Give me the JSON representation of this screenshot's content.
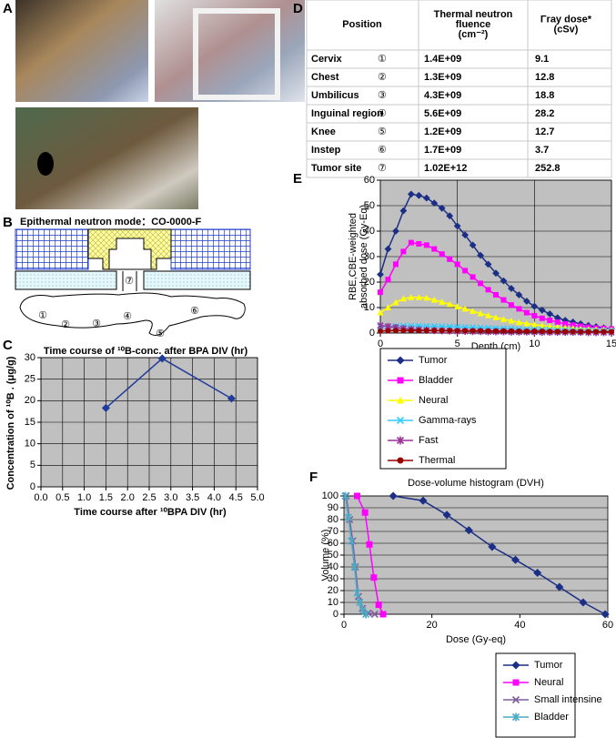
{
  "panel_labels": [
    "A",
    "B",
    "C",
    "D",
    "E",
    "F"
  ],
  "diagram": {
    "title": "Epithermal neutron mode：CO-0000-F",
    "markers": [
      "⑦",
      "①",
      "②",
      "③",
      "④",
      "⑤",
      "⑥"
    ]
  },
  "table": {
    "header": [
      [
        "Position"
      ],
      [
        "Thermal neutron",
        "fluence",
        "(cm⁻²)"
      ],
      [
        "Γray dose*",
        "(cSv)"
      ]
    ],
    "rows": [
      [
        "Cervix",
        "①",
        "1.4E+09",
        "9.1"
      ],
      [
        "Chest",
        "②",
        "1.3E+09",
        "12.8"
      ],
      [
        "Umbilicus",
        "③",
        "4.3E+09",
        "18.8"
      ],
      [
        "Inguinal region",
        "④",
        "5.6E+09",
        "28.2"
      ],
      [
        "Knee",
        "⑤",
        "1.2E+09",
        "12.7"
      ],
      [
        "Instep",
        "⑥",
        "1.7E+09",
        "3.7"
      ],
      [
        "Tumor site",
        "⑦",
        "1.02E+12",
        "252.8"
      ]
    ]
  },
  "chart_data": [
    {
      "type": "line",
      "title": "Time course of ¹⁰B-conc. after BPA DIV (hr)",
      "xlabel": "Time course after ¹⁰BPA DIV (hr)",
      "ylabel": [
        "Concentration  of ¹⁰B . (μg/g)"
      ],
      "x": [
        1.5,
        2.8,
        4.4
      ],
      "values": [
        18.3,
        29.8,
        20.5
      ],
      "color": "#1f3c99",
      "marker": "diamond",
      "xlim": [
        0,
        5
      ],
      "xticks": [
        {
          "value": 0,
          "label": "0.0"
        },
        {
          "value": 0.5,
          "label": "0.5"
        },
        {
          "value": 1,
          "label": "1.0"
        },
        {
          "value": 1.5,
          "label": "1.5"
        },
        {
          "value": 2,
          "label": "2.0"
        },
        {
          "value": 2.5,
          "label": "2.5"
        },
        {
          "value": 3,
          "label": "3.0"
        },
        {
          "value": 3.5,
          "label": "3.5"
        },
        {
          "value": 4,
          "label": "4.0"
        },
        {
          "value": 4.5,
          "label": "4.5"
        },
        {
          "value": 5,
          "label": "5.0"
        }
      ],
      "ylim": [
        0,
        30
      ],
      "yticks": [
        0,
        5,
        10,
        15,
        20,
        25,
        30
      ],
      "grid": "both",
      "background": "#c0c0c0"
    },
    {
      "type": "line",
      "xlabel": "Depth (cm)",
      "ylabel": [
        "RBE,CBE-weighted",
        "absorbed dose (Gy-Eq)"
      ],
      "x": [
        0,
        0.5,
        1,
        1.5,
        2,
        2.5,
        3,
        3.5,
        4,
        4.5,
        5,
        5.5,
        6,
        6.5,
        7,
        7.5,
        8,
        8.5,
        9,
        9.5,
        10,
        10.5,
        11,
        11.5,
        12,
        12.5,
        13,
        13.5,
        14,
        14.5,
        15
      ],
      "series": [
        {
          "name": "Tumor",
          "color": "#1c2f86",
          "marker": "diamond",
          "values": [
            23,
            33,
            40,
            48,
            54.5,
            54,
            53,
            51,
            49,
            46,
            42,
            38.5,
            34.5,
            30.5,
            27,
            23.5,
            20.5,
            17.5,
            15,
            12.5,
            10.5,
            9,
            7.5,
            6,
            5,
            4.3,
            3.6,
            3,
            2.5,
            2,
            1.7
          ]
        },
        {
          "name": "Bladder",
          "color": "#ff00ff",
          "marker": "square",
          "values": [
            16,
            21,
            27,
            32,
            35.5,
            35,
            34.5,
            33,
            31,
            29,
            27,
            24.5,
            22,
            19.5,
            17,
            15,
            13,
            11,
            9.5,
            8,
            6.8,
            5.8,
            5,
            4.3,
            3.6,
            3.1,
            2.7,
            2.3,
            2,
            1.8,
            1.6
          ]
        },
        {
          "name": "Neural",
          "color": "#ffff00",
          "marker": "triangle",
          "values": [
            8,
            10,
            12,
            13.5,
            14,
            14,
            13.8,
            13,
            12.2,
            11.3,
            10.4,
            9.5,
            8.6,
            7.7,
            6.9,
            6.1,
            5.4,
            4.8,
            4.2,
            3.7,
            3.3,
            2.9,
            2.6,
            2.3,
            2.1,
            1.9,
            1.7,
            1.5,
            1.4,
            1.3,
            1.2
          ]
        },
        {
          "name": "Gamma-rays",
          "color": "#33ccff",
          "marker": "x",
          "values": [
            2.5,
            2.6,
            2.7,
            2.8,
            2.8,
            2.8,
            2.7,
            2.7,
            2.6,
            2.5,
            2.4,
            2.3,
            2.2,
            2.1,
            2,
            1.9,
            1.8,
            1.7,
            1.6,
            1.5,
            1.4,
            1.4,
            1.3,
            1.2,
            1.2,
            1.1,
            1.1,
            1,
            1,
            1,
            0.9
          ]
        },
        {
          "name": "Fast",
          "color": "#993399",
          "marker": "star",
          "values": [
            3,
            2.6,
            2.2,
            1.8,
            1.5,
            1.3,
            1.1,
            1,
            0.9,
            0.8,
            0.7,
            0.7,
            0.6,
            0.6,
            0.5,
            0.5,
            0.5,
            0.4,
            0.4,
            0.4,
            0.4,
            0.3,
            0.3,
            0.3,
            0.3,
            0.3,
            0.3,
            0.2,
            0.2,
            0.2,
            0.2
          ]
        },
        {
          "name": "Thermal",
          "color": "#990000",
          "marker": "circle",
          "values": [
            0.8,
            0.9,
            1,
            1,
            1,
            1,
            1,
            1,
            1,
            1,
            0.9,
            0.9,
            0.9,
            0.9,
            0.8,
            0.8,
            0.8,
            0.8,
            0.7,
            0.7,
            0.7,
            0.7,
            0.6,
            0.6,
            0.6,
            0.6,
            0.5,
            0.5,
            0.5,
            0.5,
            0.5
          ]
        }
      ],
      "xlim": [
        0,
        15
      ],
      "xticks": [
        0,
        5,
        10,
        15
      ],
      "ylim": [
        0,
        60
      ],
      "yticks": [
        0,
        10,
        20,
        30,
        40,
        50,
        60
      ],
      "grid": "both",
      "background": "#c0c0c0",
      "legend": "below"
    },
    {
      "type": "line",
      "title": "Dose-volume histogram (DVH)",
      "xlabel": "Dose (Gy-eq)",
      "ylabel": [
        "Volume (%)"
      ],
      "series": [
        {
          "name": "Tumor",
          "color": "#1c2f86",
          "marker": "diamond",
          "x": [
            11.2,
            18,
            23.4,
            28.4,
            33.7,
            39,
            44,
            49,
            54.4,
            59.4
          ],
          "values": [
            100,
            96,
            84,
            71,
            57,
            46,
            35,
            23,
            10,
            0
          ]
        },
        {
          "name": "Neural",
          "color": "#ff00ff",
          "marker": "square",
          "x": [
            3,
            4.8,
            5.8,
            6.8,
            7.9,
            8.9
          ],
          "values": [
            100,
            86,
            59,
            31,
            8,
            0
          ]
        },
        {
          "name": "Small intensine",
          "color": "#7f5fa0",
          "marker": "x",
          "x": [
            0.5,
            1.3,
            2,
            2.6,
            3.3,
            4.2,
            5.5,
            7
          ],
          "values": [
            100,
            80,
            62,
            40,
            15,
            5,
            1,
            0
          ]
        },
        {
          "name": "Bladder",
          "color": "#4bacc6",
          "marker": "star",
          "x": [
            0.3,
            1,
            1.7,
            2.4,
            3,
            3.6,
            4.3,
            5
          ],
          "values": [
            100,
            82,
            62,
            40,
            18,
            10,
            3,
            0
          ]
        }
      ],
      "xlim": [
        0,
        60
      ],
      "xticks": [
        0,
        20,
        40,
        60
      ],
      "ylim": [
        0,
        100
      ],
      "yticks": [
        0,
        10,
        20,
        30,
        40,
        50,
        60,
        70,
        80,
        90,
        100
      ],
      "grid": "y",
      "background": "#c0c0c0",
      "legend": "below"
    }
  ]
}
